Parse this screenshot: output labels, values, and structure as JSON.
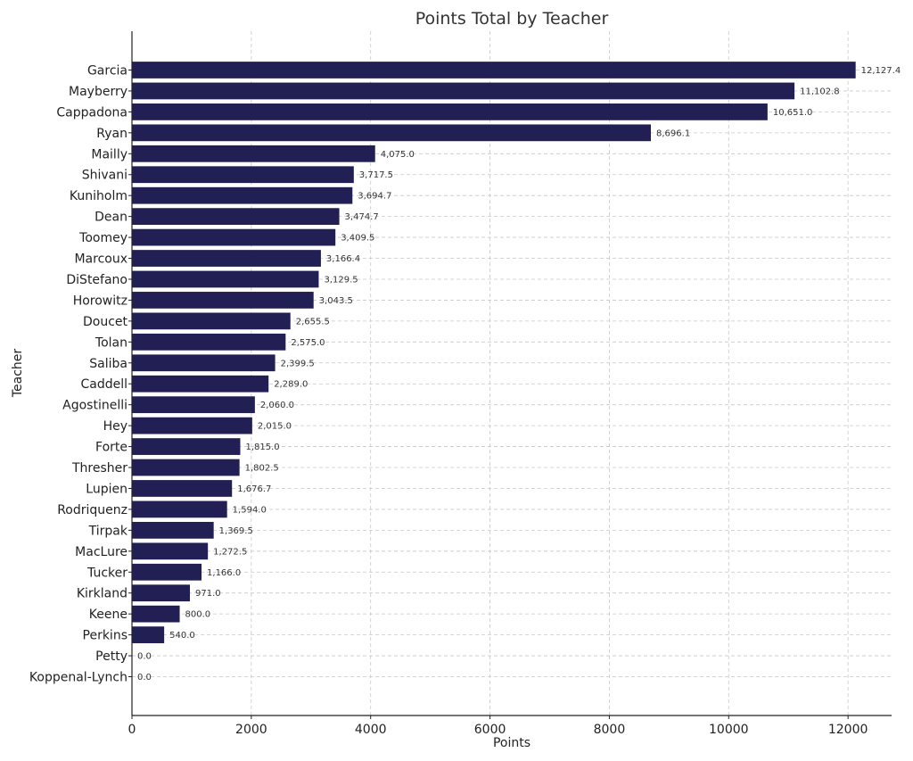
{
  "chart_data": {
    "type": "bar",
    "orientation": "horizontal",
    "title": "Points Total by Teacher",
    "xlabel": "Points",
    "ylabel": "Teacher",
    "xlim": [
      0,
      12730
    ],
    "xticks": [
      0,
      2000,
      4000,
      6000,
      8000,
      10000,
      12000
    ],
    "grid": true,
    "bar_color": "#221f55",
    "categories": [
      "Garcia",
      "Mayberry",
      "Cappadona",
      "Ryan",
      "Mailly",
      "Shivani",
      "Kuniholm",
      "Dean",
      "Toomey",
      "Marcoux",
      "DiStefano",
      "Horowitz",
      "Doucet",
      "Tolan",
      "Saliba",
      "Caddell",
      "Agostinelli",
      "Hey",
      "Forte",
      "Thresher",
      "Lupien",
      "Rodriquenz",
      "Tirpak",
      "MacLure",
      "Tucker",
      "Kirkland",
      "Keene",
      "Perkins",
      "Petty",
      "Koppenal-Lynch"
    ],
    "values": [
      12127.4,
      11102.8,
      10651.0,
      8696.1,
      4075.0,
      3717.5,
      3694.7,
      3474.7,
      3409.5,
      3166.4,
      3129.5,
      3043.5,
      2655.5,
      2575.0,
      2399.5,
      2289.0,
      2060.0,
      2015.0,
      1815.0,
      1802.5,
      1676.7,
      1594.0,
      1369.5,
      1272.5,
      1166.0,
      971.0,
      800.0,
      540.0,
      0.0,
      0.0
    ],
    "value_labels": [
      "12,127.4",
      "11,102.8",
      "10,651.0",
      "8,696.1",
      "4,075.0",
      "3,717.5",
      "3,694.7",
      "3,474.7",
      "3,409.5",
      "3,166.4",
      "3,129.5",
      "3,043.5",
      "2,655.5",
      "2,575.0",
      "2,399.5",
      "2,289.0",
      "2,060.0",
      "2,015.0",
      "1,815.0",
      "1,802.5",
      "1,676.7",
      "1,594.0",
      "1,369.5",
      "1,272.5",
      "1,166.0",
      "971.0",
      "800.0",
      "540.0",
      "0.0",
      "0.0"
    ]
  }
}
